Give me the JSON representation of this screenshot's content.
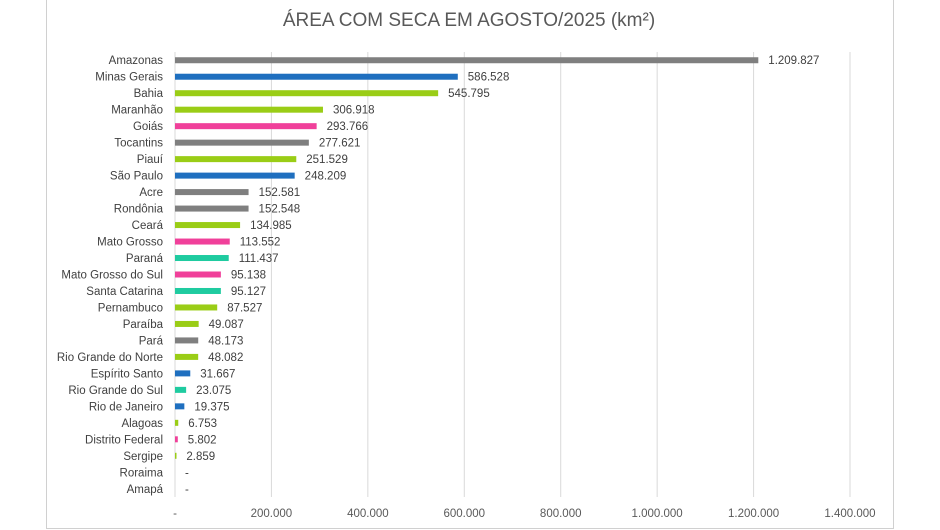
{
  "chart_data": {
    "type": "bar",
    "orientation": "horizontal",
    "title": "ÁREA COM SECA EM AGOSTO/2025 (km²)",
    "xlabel": "",
    "ylabel": "",
    "xlim": [
      0,
      1400000
    ],
    "grid": true,
    "x_tick_labels": [
      "-",
      "200.000",
      "400.000",
      "600.000",
      "800.000",
      "1.000.000",
      "1.200.000",
      "1.400.000"
    ],
    "categories": [
      "Amazonas",
      "Minas Gerais",
      "Bahia",
      "Maranhão",
      "Goiás",
      "Tocantins",
      "Piauí",
      "São Paulo",
      "Acre",
      "Rondônia",
      "Ceará",
      "Mato Grosso",
      "Paraná",
      "Mato Grosso do Sul",
      "Santa Catarina",
      "Pernambuco",
      "Paraíba",
      "Pará",
      "Rio Grande do Norte",
      "Espírito Santo",
      "Rio Grande do Sul",
      "Rio de Janeiro",
      "Alagoas",
      "Distrito Federal",
      "Sergipe",
      "Roraima",
      "Amapá"
    ],
    "values": [
      1209827,
      586528,
      545795,
      306918,
      293766,
      277621,
      251529,
      248209,
      152581,
      152548,
      134985,
      113552,
      111437,
      95138,
      95127,
      87527,
      49087,
      48173,
      48082,
      31667,
      23075,
      19375,
      6753,
      5802,
      2859,
      0,
      0
    ],
    "value_labels": [
      "1.209.827",
      "586.528",
      "545.795",
      "306.918",
      "293.766",
      "277.621",
      "251.529",
      "248.209",
      "152.581",
      "152.548",
      "134.985",
      "113.552",
      "111.437",
      "95.138",
      "95.127",
      "87.527",
      "49.087",
      "48.173",
      "48.082",
      "31.667",
      "23.075",
      "19.375",
      "6.753",
      "5.802",
      "2.859",
      "-",
      "-"
    ],
    "colors": [
      "#7f7f7f",
      "#1f6fbf",
      "#9acd16",
      "#9acd16",
      "#f0409a",
      "#7f7f7f",
      "#9acd16",
      "#1f6fbf",
      "#7f7f7f",
      "#7f7f7f",
      "#9acd16",
      "#f0409a",
      "#1fcba0",
      "#f0409a",
      "#1fcba0",
      "#9acd16",
      "#9acd16",
      "#7f7f7f",
      "#9acd16",
      "#1f6fbf",
      "#1fcba0",
      "#1f6fbf",
      "#9acd16",
      "#f0409a",
      "#9acd16",
      "#7f7f7f",
      "#7f7f7f"
    ]
  }
}
